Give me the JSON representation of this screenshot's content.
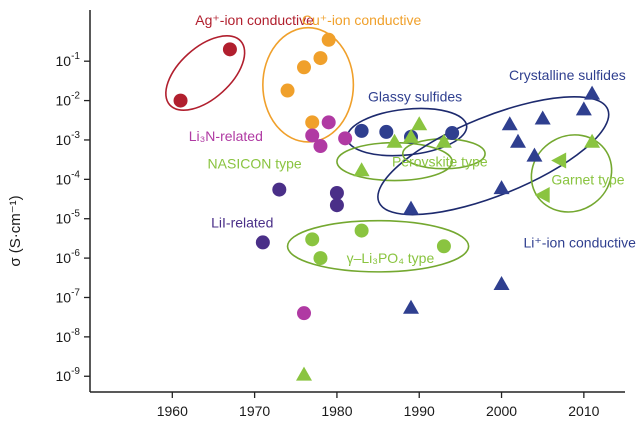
{
  "chart_data": {
    "type": "scatter",
    "title": "",
    "xlabel": "",
    "ylabel": "σ (S·cm⁻¹)",
    "xlim": [
      1950,
      2015
    ],
    "ylim_log10": [
      -9.4,
      0.3
    ],
    "y_scale": "log",
    "x_ticks": [
      1960,
      1970,
      1980,
      1990,
      2000,
      2010
    ],
    "y_ticks": [
      {
        "exp": -1,
        "label": "10-1"
      },
      {
        "exp": -2,
        "label": "10-2"
      },
      {
        "exp": -3,
        "label": "10-3"
      },
      {
        "exp": -4,
        "label": "10-4"
      },
      {
        "exp": -5,
        "label": "10-5"
      },
      {
        "exp": -6,
        "label": "10-6"
      },
      {
        "exp": -7,
        "label": "10-7"
      },
      {
        "exp": -8,
        "label": "10-8"
      },
      {
        "exp": -9,
        "label": "10-9"
      }
    ],
    "grid": false,
    "colors": {
      "ag": "#b11f2e",
      "cu": "#f0a02b",
      "li3n": "#b03aa3",
      "lii": "#4a2f88",
      "green": "#8ac440",
      "blue": "#2f3f8f",
      "ellipse_green": "#74a830",
      "ellipse_blue": "#1d2a6e"
    },
    "series": [
      {
        "key": "ag",
        "marker": "circle",
        "points": [
          [
            1961,
            0.01
          ],
          [
            1967,
            0.2
          ]
        ]
      },
      {
        "key": "cu",
        "marker": "circle",
        "points": [
          [
            1974,
            0.018
          ],
          [
            1976,
            0.07
          ],
          [
            1978,
            0.12
          ],
          [
            1979,
            0.35
          ],
          [
            1977,
            0.0028
          ]
        ]
      },
      {
        "key": "li3n",
        "marker": "circle",
        "points": [
          [
            1977,
            0.0013
          ],
          [
            1978,
            0.0007
          ],
          [
            1979,
            0.0028
          ],
          [
            1981,
            0.0011
          ],
          [
            1976,
            4e-08
          ]
        ]
      },
      {
        "key": "lii",
        "marker": "circle",
        "points": [
          [
            1973,
            5.5e-05
          ],
          [
            1971,
            2.5e-06
          ],
          [
            1980,
            4.5e-05
          ],
          [
            1980,
            2.2e-05
          ]
        ]
      },
      {
        "key": "green",
        "marker": "circle",
        "points": [
          [
            1977,
            3e-06
          ],
          [
            1978,
            1e-06
          ],
          [
            1983,
            5e-06
          ],
          [
            1993,
            2e-06
          ]
        ]
      },
      {
        "key": "blue",
        "marker": "circle",
        "points": [
          [
            1983,
            0.0017
          ],
          [
            1986,
            0.0016
          ],
          [
            1989,
            0.0012
          ],
          [
            1994,
            0.0015
          ]
        ]
      },
      {
        "key": "green",
        "marker": "triangle-up",
        "points": [
          [
            1976,
            1.1e-09
          ],
          [
            1983,
            0.00017
          ],
          [
            1987,
            0.0009
          ],
          [
            1989,
            0.0012
          ],
          [
            1990,
            0.0025
          ],
          [
            1993,
            0.0009
          ],
          [
            2011,
            0.0009
          ]
        ]
      },
      {
        "key": "green",
        "marker": "triangle-left",
        "points": [
          [
            2007,
            0.0003
          ],
          [
            2005,
            4e-05
          ]
        ]
      },
      {
        "key": "blue",
        "marker": "triangle-up",
        "points": [
          [
            1989,
            5.5e-08
          ],
          [
            1989,
            1.8e-05
          ],
          [
            2000,
            2.2e-07
          ],
          [
            2000,
            6e-05
          ],
          [
            2001,
            0.0025
          ],
          [
            2002,
            0.0009
          ],
          [
            2004,
            0.0004
          ],
          [
            2005,
            0.0035
          ],
          [
            2010,
            0.006
          ],
          [
            2011,
            0.015
          ]
        ]
      }
    ],
    "ellipses": [
      {
        "color": "ag",
        "label": "Ag⁺-ion conductive",
        "cx": 1964,
        "cy": -1.3,
        "rx": 5.8,
        "ry": 0.65,
        "angle": -42
      },
      {
        "color": "cu",
        "label": "Cu⁺-ion conductive",
        "cx": 1976.5,
        "cy": -1.6,
        "rx": 5.5,
        "ry": 1.45,
        "angle": 0
      },
      {
        "color": "blue",
        "label": "Glassy sulfides",
        "cx": 1988.5,
        "cy": -2.8,
        "rx": 7.3,
        "ry": 0.58,
        "angle": -6
      },
      {
        "color": "green",
        "label": "NASICON type",
        "cx": 1987,
        "cy": -3.55,
        "rx": 7,
        "ry": 0.48,
        "angle": 0
      },
      {
        "color": "green",
        "label": "Perovskite type",
        "cx": 1993,
        "cy": -3.35,
        "rx": 5,
        "ry": 0.38,
        "angle": 0
      },
      {
        "color": "blue",
        "label": "Crystalline sulfides",
        "cx": 1999,
        "cy": -3.4,
        "rx": 15,
        "ry": 1.0,
        "angle": -22
      },
      {
        "color": "green",
        "label": "Garnet type",
        "cx": 2008.5,
        "cy": -3.85,
        "rx": 5,
        "ry": 0.95,
        "angle": -32
      },
      {
        "color": "green",
        "label": "γ–Li₃PO₄ type",
        "cx": 1985,
        "cy": -5.7,
        "rx": 11,
        "ry": 0.65,
        "angle": 0
      }
    ],
    "annotations": [
      {
        "text": "Ag⁺-ion conductive",
        "color": "ag",
        "x": 1970,
        "y_exp": 0.05
      },
      {
        "text": "Cu⁺-ion conductive",
        "color": "cu",
        "x": 1983,
        "y_exp": 0.05
      },
      {
        "text": "Li₃N-related",
        "color": "li3n",
        "x": 1966.5,
        "y_exp": -2.9
      },
      {
        "text": "NASICON type",
        "color": "green",
        "x": 1970,
        "y_exp": -3.6
      },
      {
        "text": "LiI-related",
        "color": "lii",
        "x": 1968.5,
        "y_exp": -5.1
      },
      {
        "text": "Glassy sulfides",
        "color": "blue",
        "x": 1989.5,
        "y_exp": -1.9
      },
      {
        "text": "Crystalline sulfides",
        "color": "blue",
        "x": 2008,
        "y_exp": -1.35
      },
      {
        "text": "Perovskite type",
        "color": "green",
        "x": 1992.5,
        "y_exp": -3.55
      },
      {
        "text": "Garnet type",
        "color": "green",
        "x": 2010.5,
        "y_exp": -4.0
      },
      {
        "text": "Li⁺-ion conductive",
        "color": "blue",
        "x": 2009.5,
        "y_exp": -5.6
      },
      {
        "text": "γ–Li₃PO₄ type",
        "color": "green",
        "x": 1986.5,
        "y_exp": -6.0
      }
    ]
  }
}
